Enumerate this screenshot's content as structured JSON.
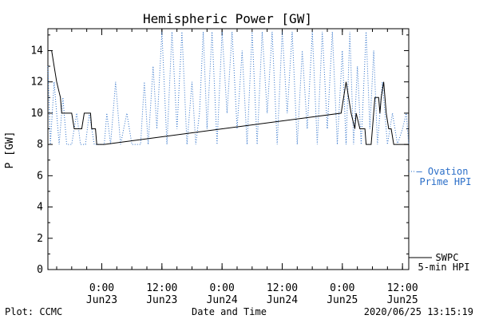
{
  "chart_data": {
    "type": "line",
    "title": "Hemispheric Power [GW]",
    "ylabel": "P [GW]",
    "xlabel": "Date and Time",
    "ylim": [
      0,
      15.4
    ],
    "yticks": [
      0,
      2,
      4,
      6,
      8,
      10,
      12,
      14
    ],
    "xlim": [
      "2020-06-22T13:15",
      "2020-06-25T13:15"
    ],
    "xticks": [
      {
        "t": "2020-06-23T00:00",
        "time": "0:00",
        "date": "Jun23"
      },
      {
        "t": "2020-06-23T12:00",
        "time": "12:00",
        "date": "Jun23"
      },
      {
        "t": "2020-06-24T00:00",
        "time": "0:00",
        "date": "Jun24"
      },
      {
        "t": "2020-06-24T12:00",
        "time": "12:00",
        "date": "Jun24"
      },
      {
        "t": "2020-06-25T00:00",
        "time": "0:00",
        "date": "Jun25"
      },
      {
        "t": "2020-06-25T12:00",
        "time": "12:00",
        "date": "Jun25"
      }
    ],
    "series": [
      {
        "name": "SWPC 5-min HPI",
        "legend_lines": [
          "SWPC",
          "5-min HPI"
        ],
        "color": "#000000",
        "style": "solid",
        "points": [
          [
            "2020-06-22T13:15",
            14
          ],
          [
            "2020-06-22T14:00",
            14
          ],
          [
            "2020-06-22T14:30",
            13
          ],
          [
            "2020-06-22T15:00",
            12
          ],
          [
            "2020-06-22T15:45",
            11
          ],
          [
            "2020-06-22T16:00",
            10
          ],
          [
            "2020-06-22T18:00",
            10
          ],
          [
            "2020-06-22T18:30",
            9
          ],
          [
            "2020-06-22T20:00",
            9
          ],
          [
            "2020-06-22T20:30",
            10
          ],
          [
            "2020-06-22T21:45",
            10
          ],
          [
            "2020-06-22T22:00",
            9
          ],
          [
            "2020-06-22T22:45",
            9
          ],
          [
            "2020-06-22T23:00",
            8
          ],
          [
            "2020-06-23T00:30",
            8
          ],
          [
            "2020-06-24T23:45",
            10
          ],
          [
            "2020-06-25T00:45",
            12
          ],
          [
            "2020-06-25T01:45",
            10
          ],
          [
            "2020-06-25T02:30",
            9
          ],
          [
            "2020-06-25T02:45",
            10
          ],
          [
            "2020-06-25T03:30",
            9
          ],
          [
            "2020-06-25T04:30",
            9
          ],
          [
            "2020-06-25T04:45",
            8
          ],
          [
            "2020-06-25T05:45",
            8
          ],
          [
            "2020-06-25T06:00",
            9
          ],
          [
            "2020-06-25T06:30",
            11
          ],
          [
            "2020-06-25T07:15",
            11
          ],
          [
            "2020-06-25T07:30",
            10
          ],
          [
            "2020-06-25T07:45",
            11
          ],
          [
            "2020-06-25T08:15",
            12
          ],
          [
            "2020-06-25T08:45",
            10
          ],
          [
            "2020-06-25T09:15",
            9
          ],
          [
            "2020-06-25T09:45",
            9
          ],
          [
            "2020-06-25T10:15",
            8
          ],
          [
            "2020-06-25T13:15",
            8
          ]
        ]
      },
      {
        "name": "Ovation Prime HPI",
        "legend_lines": [
          "— Ovation",
          "Prime HPI"
        ],
        "color": "#2a6ec8",
        "style": "dotted",
        "points": [
          [
            "2020-06-22T13:15",
            13
          ],
          [
            "2020-06-22T13:45",
            8
          ],
          [
            "2020-06-22T14:30",
            12
          ],
          [
            "2020-06-22T15:30",
            8
          ],
          [
            "2020-06-22T16:15",
            11
          ],
          [
            "2020-06-22T17:00",
            8
          ],
          [
            "2020-06-22T18:00",
            8
          ],
          [
            "2020-06-22T19:00",
            10
          ],
          [
            "2020-06-22T19:45",
            8
          ],
          [
            "2020-06-22T20:45",
            8
          ],
          [
            "2020-06-22T21:30",
            10
          ],
          [
            "2020-06-22T22:30",
            8
          ],
          [
            "2020-06-23T00:30",
            8
          ],
          [
            "2020-06-23T01:00",
            10
          ],
          [
            "2020-06-23T01:45",
            8
          ],
          [
            "2020-06-23T02:45",
            12
          ],
          [
            "2020-06-23T03:45",
            8
          ],
          [
            "2020-06-23T05:00",
            10
          ],
          [
            "2020-06-23T06:00",
            8
          ],
          [
            "2020-06-23T07:45",
            8
          ],
          [
            "2020-06-23T08:30",
            12
          ],
          [
            "2020-06-23T09:15",
            8
          ],
          [
            "2020-06-23T10:15",
            13
          ],
          [
            "2020-06-23T11:00",
            9
          ],
          [
            "2020-06-23T12:00",
            15.2
          ],
          [
            "2020-06-23T13:00",
            8
          ],
          [
            "2020-06-23T14:00",
            15.2
          ],
          [
            "2020-06-23T15:00",
            9
          ],
          [
            "2020-06-23T16:00",
            15.2
          ],
          [
            "2020-06-23T17:00",
            8
          ],
          [
            "2020-06-23T18:00",
            12
          ],
          [
            "2020-06-23T18:45",
            8
          ],
          [
            "2020-06-23T19:30",
            10
          ],
          [
            "2020-06-23T20:15",
            15.2
          ],
          [
            "2020-06-23T21:00",
            9
          ],
          [
            "2020-06-23T22:00",
            15.2
          ],
          [
            "2020-06-23T23:00",
            8
          ],
          [
            "2020-06-24T00:00",
            15.2
          ],
          [
            "2020-06-24T01:00",
            10
          ],
          [
            "2020-06-24T02:00",
            15.2
          ],
          [
            "2020-06-24T03:00",
            9
          ],
          [
            "2020-06-24T04:00",
            14
          ],
          [
            "2020-06-24T05:00",
            8
          ],
          [
            "2020-06-24T06:00",
            15.2
          ],
          [
            "2020-06-24T07:00",
            8
          ],
          [
            "2020-06-24T08:00",
            15.2
          ],
          [
            "2020-06-24T09:00",
            10
          ],
          [
            "2020-06-24T10:00",
            15.2
          ],
          [
            "2020-06-24T11:00",
            8
          ],
          [
            "2020-06-24T12:00",
            15.2
          ],
          [
            "2020-06-24T13:00",
            10
          ],
          [
            "2020-06-24T14:00",
            15.2
          ],
          [
            "2020-06-24T15:00",
            8
          ],
          [
            "2020-06-24T16:00",
            14
          ],
          [
            "2020-06-24T17:00",
            9
          ],
          [
            "2020-06-24T18:00",
            15.2
          ],
          [
            "2020-06-24T19:00",
            8
          ],
          [
            "2020-06-24T20:00",
            15.2
          ],
          [
            "2020-06-24T21:00",
            9
          ],
          [
            "2020-06-24T22:00",
            15.2
          ],
          [
            "2020-06-24T23:00",
            8
          ],
          [
            "2020-06-25T00:00",
            14
          ],
          [
            "2020-06-25T00:45",
            8
          ],
          [
            "2020-06-25T01:30",
            15.2
          ],
          [
            "2020-06-25T02:15",
            8
          ],
          [
            "2020-06-25T03:00",
            13
          ],
          [
            "2020-06-25T03:45",
            8
          ],
          [
            "2020-06-25T04:45",
            15.2
          ],
          [
            "2020-06-25T05:30",
            9
          ],
          [
            "2020-06-25T06:15",
            14
          ],
          [
            "2020-06-25T07:00",
            8
          ],
          [
            "2020-06-25T08:00",
            12
          ],
          [
            "2020-06-25T09:00",
            8
          ],
          [
            "2020-06-25T10:00",
            10
          ],
          [
            "2020-06-25T11:00",
            8
          ],
          [
            "2020-06-25T12:00",
            9
          ],
          [
            "2020-06-25T12:45",
            10
          ],
          [
            "2020-06-25T13:15",
            8
          ]
        ]
      }
    ],
    "grid": false
  },
  "footer": {
    "left": "Plot: CCMC",
    "center": "Date and Time",
    "right": "2020/06/25 13:15:19"
  },
  "colors": {
    "axis": "#000000",
    "swpc": "#000000",
    "ovation": "#2a6ec8"
  }
}
